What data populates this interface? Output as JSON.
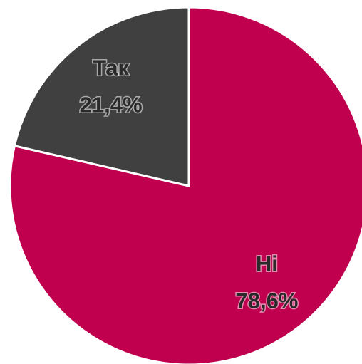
{
  "chart_data": {
    "type": "pie",
    "categories": [
      "Ні",
      "Так"
    ],
    "values": [
      78.6,
      21.4
    ],
    "value_labels": [
      "78,6%",
      "21,4%"
    ],
    "colors": [
      "#c0004f",
      "#404040"
    ]
  }
}
